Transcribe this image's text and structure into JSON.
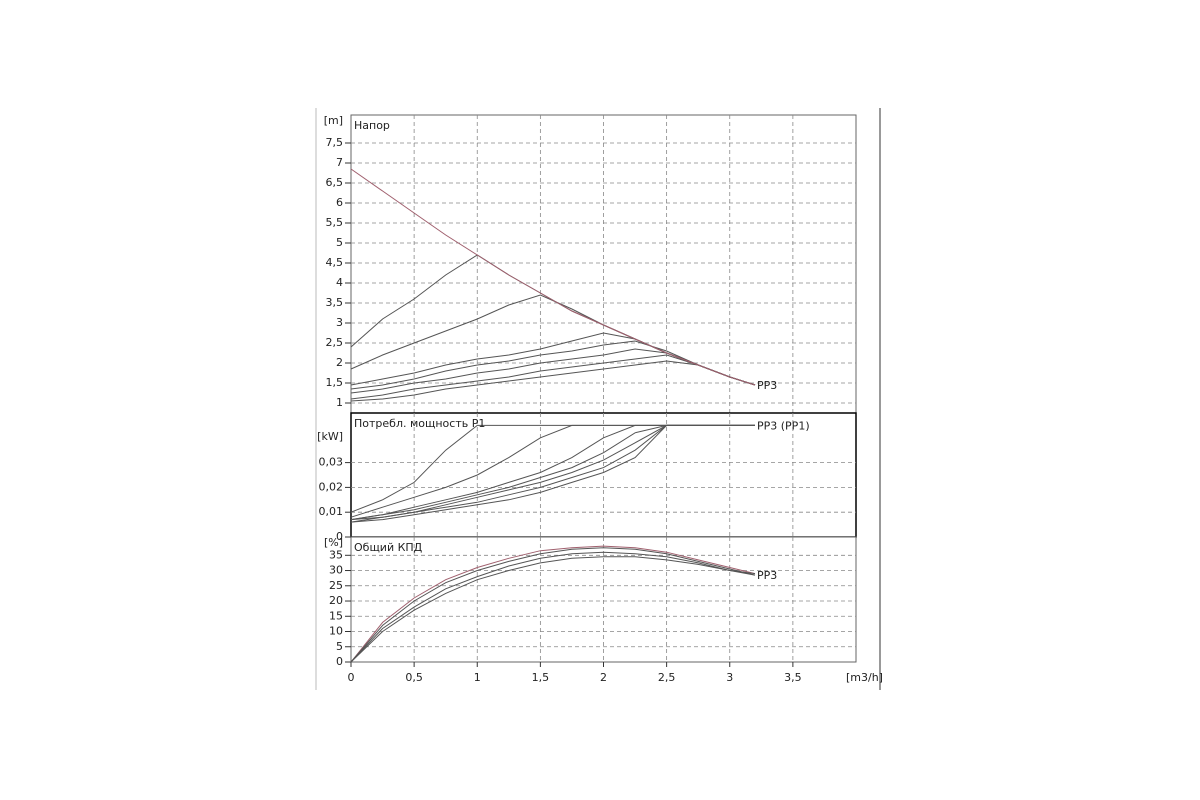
{
  "chart_data": [
    {
      "type": "line",
      "title": "Напор",
      "ylabel": "[m]",
      "end_label": "PP3",
      "x": [
        0,
        0.25,
        0.5,
        0.75,
        1,
        1.25,
        1.5,
        1.75,
        2,
        2.25,
        2.5,
        2.75,
        3,
        3.2
      ],
      "xlim": [
        0,
        4
      ],
      "ylim": [
        0.75,
        8.2
      ],
      "yticks": [
        1,
        {
          "value": 1.5,
          "label": "1,5"
        },
        2,
        {
          "value": 2.5,
          "label": "2,5"
        },
        3,
        {
          "value": 3.5,
          "label": "3,5"
        },
        4,
        {
          "value": 4.5,
          "label": "4,5"
        },
        5,
        {
          "value": 5.5,
          "label": "5,5"
        },
        6,
        {
          "value": 6.5,
          "label": "6,5"
        },
        7,
        {
          "value": 7.5,
          "label": "7,5"
        }
      ],
      "grid": true,
      "series": [
        {
          "color": "#555555",
          "values": [
            2.4,
            3.1,
            3.6,
            4.2,
            4.7,
            4.2,
            3.75,
            3.3,
            2.95,
            2.6,
            2.25,
            1.95,
            1.65,
            1.45
          ]
        },
        {
          "color": "#555555",
          "values": [
            1.85,
            2.2,
            2.5,
            2.8,
            3.1,
            3.45,
            3.7,
            3.35,
            2.95,
            2.6,
            2.25,
            1.95,
            1.65,
            1.45
          ]
        },
        {
          "color": "#555555",
          "values": [
            1.45,
            1.6,
            1.75,
            1.95,
            2.1,
            2.2,
            2.35,
            2.55,
            2.75,
            2.6,
            2.25,
            1.95,
            1.65,
            1.45
          ]
        },
        {
          "color": "#555555",
          "values": [
            1.35,
            1.45,
            1.6,
            1.8,
            1.95,
            2.05,
            2.2,
            2.3,
            2.45,
            2.55,
            2.3,
            1.95,
            1.65,
            1.45
          ]
        },
        {
          "color": "#555555",
          "values": [
            1.25,
            1.35,
            1.5,
            1.6,
            1.75,
            1.85,
            2.0,
            2.1,
            2.2,
            2.35,
            2.25,
            1.95,
            1.65,
            1.45
          ]
        },
        {
          "color": "#555555",
          "values": [
            1.1,
            1.2,
            1.35,
            1.45,
            1.55,
            1.65,
            1.8,
            1.9,
            2.0,
            2.1,
            2.2,
            1.95,
            1.65,
            1.45
          ]
        },
        {
          "color": "#555555",
          "values": [
            1.05,
            1.1,
            1.2,
            1.35,
            1.45,
            1.55,
            1.65,
            1.75,
            1.85,
            1.95,
            2.05,
            1.95,
            1.65,
            1.45
          ]
        },
        {
          "color": "#a0606e",
          "values": [
            6.85,
            6.3,
            5.75,
            5.2,
            4.7,
            4.2,
            3.75,
            3.3,
            2.95,
            2.6,
            2.25,
            1.95,
            1.65,
            1.45
          ]
        }
      ]
    },
    {
      "type": "line",
      "title": "Потребл. мощность P1",
      "ylabel": "[kW]",
      "end_label": "PP3 (PP1)",
      "x": [
        0,
        0.25,
        0.5,
        0.75,
        1,
        1.25,
        1.5,
        1.75,
        2,
        2.25,
        2.5,
        2.75,
        3,
        3.2
      ],
      "xlim": [
        0,
        4
      ],
      "ylim": [
        0,
        0.05
      ],
      "yticks": [
        0,
        {
          "value": 0.01,
          "label": "0,01"
        },
        {
          "value": 0.02,
          "label": "0,02"
        },
        {
          "value": 0.03,
          "label": "0,03"
        }
      ],
      "grid": true,
      "series": [
        {
          "color": "#555555",
          "values": [
            0.01,
            0.015,
            0.022,
            0.035,
            0.045,
            0.045,
            0.045,
            0.045,
            0.045,
            0.045,
            0.045,
            0.045,
            0.045,
            0.045
          ]
        },
        {
          "color": "#555555",
          "values": [
            0.008,
            0.012,
            0.016,
            0.02,
            0.025,
            0.032,
            0.04,
            0.045,
            0.045,
            0.045,
            0.045,
            0.045,
            0.045,
            0.045
          ]
        },
        {
          "color": "#555555",
          "values": [
            0.007,
            0.009,
            0.012,
            0.015,
            0.018,
            0.022,
            0.026,
            0.032,
            0.04,
            0.045,
            0.045,
            0.045,
            0.045,
            0.045
          ]
        },
        {
          "color": "#555555",
          "values": [
            0.007,
            0.009,
            0.011,
            0.014,
            0.017,
            0.02,
            0.024,
            0.028,
            0.034,
            0.042,
            0.045,
            0.045,
            0.045,
            0.045
          ]
        },
        {
          "color": "#555555",
          "values": [
            0.007,
            0.008,
            0.01,
            0.013,
            0.016,
            0.019,
            0.022,
            0.026,
            0.031,
            0.038,
            0.045,
            0.045,
            0.045,
            0.045
          ]
        },
        {
          "color": "#555555",
          "values": [
            0.006,
            0.008,
            0.01,
            0.012,
            0.014,
            0.017,
            0.02,
            0.024,
            0.028,
            0.035,
            0.045,
            0.045,
            0.045,
            0.045
          ]
        },
        {
          "color": "#555555",
          "values": [
            0.006,
            0.007,
            0.009,
            0.011,
            0.013,
            0.015,
            0.018,
            0.022,
            0.026,
            0.032,
            0.045,
            0.045,
            0.045,
            0.045
          ]
        }
      ]
    },
    {
      "type": "line",
      "title": "Общий КПД",
      "ylabel": "[%]",
      "xlabel": "[m3/h]",
      "end_label": "PP3",
      "x": [
        0,
        0.25,
        0.5,
        0.75,
        1,
        1.25,
        1.5,
        1.75,
        2,
        2.25,
        2.5,
        2.75,
        3,
        3.2
      ],
      "xlim": [
        0,
        4
      ],
      "ylim": [
        0,
        41
      ],
      "xticks": [
        0,
        {
          "value": 0.5,
          "label": "0,5"
        },
        1,
        {
          "value": 1.5,
          "label": "1,5"
        },
        2,
        {
          "value": 2.5,
          "label": "2,5"
        },
        3,
        {
          "value": 3.5,
          "label": "3,5"
        }
      ],
      "yticks": [
        0,
        5,
        10,
        15,
        20,
        25,
        30,
        35
      ],
      "grid": true,
      "series": [
        {
          "color": "#a0606e",
          "values": [
            0,
            13,
            21,
            27,
            31,
            34,
            36.5,
            37.5,
            38,
            37.5,
            36,
            33.5,
            31,
            29
          ]
        },
        {
          "color": "#555555",
          "values": [
            0,
            12,
            20,
            26,
            30,
            33,
            35.5,
            37,
            37.5,
            37,
            35.5,
            33,
            30.5,
            28.5
          ]
        },
        {
          "color": "#555555",
          "values": [
            0,
            11,
            18,
            24,
            28,
            31.5,
            34,
            35.5,
            36,
            35.5,
            34.5,
            32.5,
            30,
            29
          ]
        },
        {
          "color": "#555555",
          "values": [
            0,
            10,
            17,
            22.5,
            27,
            30,
            32.5,
            34,
            34.5,
            34.5,
            33.5,
            32,
            30,
            28.5
          ]
        }
      ]
    }
  ]
}
